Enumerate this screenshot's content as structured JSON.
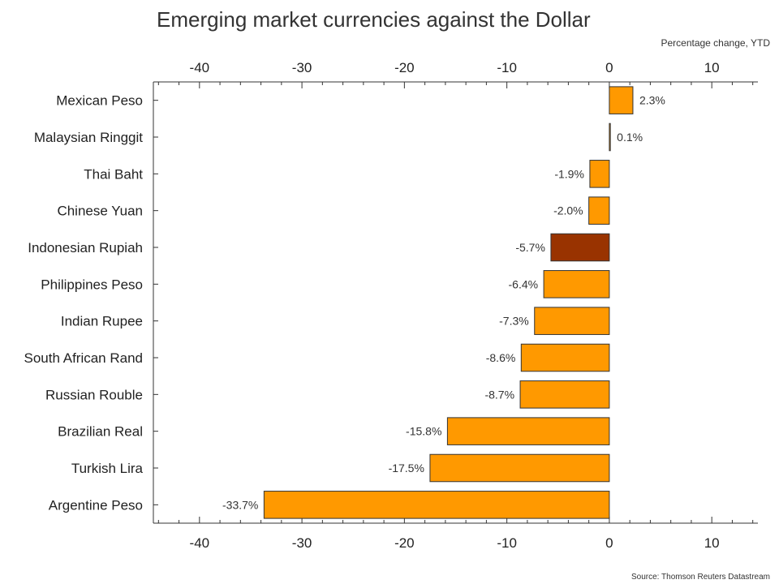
{
  "chart_data": {
    "type": "bar",
    "orientation": "horizontal",
    "title": "Emerging market currencies against the Dollar",
    "subtitle": "Percentage change, YTD",
    "source": "Source: Thomson Reuters Datastream",
    "categories": [
      "Mexican Peso",
      "Malaysian Ringgit",
      "Thai Baht",
      "Chinese Yuan",
      "Indonesian Rupiah",
      "Philippines Peso",
      "Indian Rupee",
      "South African Rand",
      "Russian Rouble",
      "Brazilian Real",
      "Turkish Lira",
      "Argentine Peso"
    ],
    "values": [
      2.3,
      0.1,
      -1.9,
      -2.0,
      -5.7,
      -6.4,
      -7.3,
      -8.6,
      -8.7,
      -15.8,
      -17.5,
      -33.7
    ],
    "value_labels": [
      "2.3%",
      "0.1%",
      "-1.9%",
      "-2.0%",
      "-5.7%",
      "-6.4%",
      "-7.3%",
      "-8.6%",
      "-8.7%",
      "-15.8%",
      "-17.5%",
      "-33.7%"
    ],
    "xlim": [
      -44.5,
      14.5
    ],
    "xticks": [
      -40,
      -30,
      -20,
      -10,
      0,
      10
    ],
    "xtick_labels": [
      "-40",
      "-30",
      "-20",
      "-10",
      "0",
      "10"
    ],
    "grid": false,
    "colors": {
      "default": "#FF9900",
      "highlight": "#993300",
      "axis": "#333333"
    },
    "highlight_category": "Indonesian Rupiah"
  }
}
